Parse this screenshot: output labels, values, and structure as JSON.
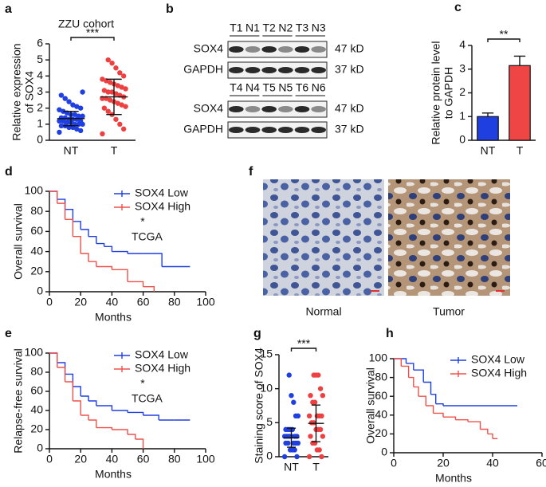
{
  "chart_data": [
    {
      "type": "strip",
      "panel": "a",
      "title": "ZZU cohort",
      "ylabel": [
        "Relative expression",
        "of SOX4"
      ],
      "categories": [
        "NT",
        "T"
      ],
      "colors": [
        "#1f3fe0",
        "#ee4040"
      ],
      "values": [
        [
          0.5,
          0.6,
          0.7,
          0.8,
          0.8,
          0.9,
          0.9,
          1.0,
          1.0,
          1.0,
          1.1,
          1.1,
          1.2,
          1.2,
          1.2,
          1.3,
          1.3,
          1.3,
          1.4,
          1.4,
          1.5,
          1.5,
          1.6,
          1.6,
          1.7,
          1.8,
          1.9,
          2.0,
          2.1,
          2.2,
          2.4,
          2.6,
          2.8,
          3.0
        ],
        [
          0.4,
          0.7,
          1.0,
          1.3,
          1.6,
          1.8,
          2.0,
          2.1,
          2.2,
          2.3,
          2.4,
          2.5,
          2.6,
          2.6,
          2.7,
          2.8,
          2.9,
          3.0,
          3.0,
          3.1,
          3.2,
          3.3,
          3.4,
          3.5,
          3.6,
          3.7,
          3.8,
          4.0,
          4.2,
          4.5,
          4.8,
          5.0
        ]
      ],
      "means": [
        1.35,
        2.7
      ],
      "sds": [
        0.45,
        1.1
      ],
      "annotation": "***",
      "ylim": [
        0,
        6
      ],
      "yticks": [
        0,
        1,
        2,
        3,
        4,
        5,
        6
      ]
    },
    {
      "type": "bar",
      "panel": "c",
      "ylabel": [
        "Relative protein level",
        "to GAPDH"
      ],
      "categories": [
        "NT",
        "T"
      ],
      "colors": [
        "#1f3fe0",
        "#f04545"
      ],
      "values": [
        1.0,
        3.15
      ],
      "errors": [
        0.15,
        0.4
      ],
      "annotation": "**",
      "ylim": [
        0,
        4
      ],
      "yticks": [
        0,
        1,
        2,
        3,
        4
      ]
    },
    {
      "type": "survival",
      "panel": "d",
      "ylabel": "Overall survival",
      "xlabel": "Months",
      "annotations": [
        "*",
        "TCGA"
      ],
      "series": [
        {
          "name": "SOX4 Low",
          "color": "#1f3fe0",
          "x": [
            0,
            5,
            10,
            15,
            20,
            25,
            30,
            35,
            40,
            50,
            60,
            72,
            90
          ],
          "values": [
            100,
            92,
            82,
            70,
            62,
            55,
            48,
            45,
            40,
            38,
            38,
            25,
            25
          ]
        },
        {
          "name": "SOX4 High",
          "color": "#f0504a",
          "x": [
            0,
            5,
            10,
            15,
            20,
            25,
            30,
            40,
            50,
            60,
            67
          ],
          "values": [
            100,
            88,
            72,
            55,
            38,
            30,
            25,
            22,
            10,
            5,
            0
          ]
        }
      ],
      "xlim": [
        0,
        100
      ],
      "xticks": [
        0,
        20,
        40,
        60,
        80,
        100
      ],
      "ylim": [
        0,
        100
      ],
      "yticks": [
        0,
        20,
        40,
        60,
        80,
        100
      ]
    },
    {
      "type": "survival",
      "panel": "e",
      "ylabel": "Relapse-free survival",
      "xlabel": "Months",
      "annotations": [
        "*",
        "TCGA"
      ],
      "series": [
        {
          "name": "SOX4 Low",
          "color": "#1f3fe0",
          "x": [
            0,
            5,
            10,
            15,
            20,
            25,
            30,
            40,
            50,
            60,
            70,
            80,
            90
          ],
          "values": [
            100,
            90,
            78,
            65,
            55,
            50,
            45,
            40,
            38,
            35,
            30,
            30,
            30
          ]
        },
        {
          "name": "SOX4 High",
          "color": "#f0504a",
          "x": [
            0,
            5,
            10,
            15,
            20,
            25,
            30,
            40,
            50,
            55,
            60
          ],
          "values": [
            100,
            85,
            70,
            50,
            35,
            30,
            22,
            20,
            15,
            10,
            0
          ]
        }
      ],
      "xlim": [
        0,
        100
      ],
      "xticks": [
        0,
        20,
        40,
        60,
        80,
        100
      ],
      "ylim": [
        0,
        100
      ],
      "yticks": [
        0,
        20,
        40,
        60,
        80,
        100
      ]
    },
    {
      "type": "strip",
      "panel": "g",
      "ylabel": [
        "Staining score of SOX4"
      ],
      "categories": [
        "NT",
        "T"
      ],
      "colors": [
        "#1f3fe0",
        "#ee4040"
      ],
      "values": [
        [
          0,
          0,
          1,
          1,
          1,
          2,
          2,
          2,
          2,
          2,
          3,
          3,
          3,
          3,
          3,
          3,
          4,
          4,
          4,
          4,
          6,
          6,
          8,
          9,
          12
        ],
        [
          0,
          0,
          1,
          1,
          2,
          2,
          3,
          3,
          4,
          4,
          4,
          5,
          5,
          6,
          6,
          6,
          6,
          8,
          8,
          9,
          9,
          10,
          12,
          12,
          12
        ]
      ],
      "means": [
        2.8,
        4.9
      ],
      "sds": [
        1.4,
        2.7
      ],
      "annotation": "***",
      "ylim": [
        0,
        15
      ],
      "yticks": [
        0,
        5,
        10,
        15
      ]
    },
    {
      "type": "survival",
      "panel": "h",
      "ylabel": "Overall survival",
      "xlabel": "Months",
      "annotations": [],
      "series": [
        {
          "name": "SOX4 Low",
          "color": "#1f3fe0",
          "x": [
            0,
            5,
            8,
            12,
            15,
            17,
            20,
            50
          ],
          "values": [
            100,
            95,
            88,
            75,
            62,
            52,
            50,
            50
          ]
        },
        {
          "name": "SOX4 High",
          "color": "#f0504a",
          "x": [
            0,
            3,
            6,
            8,
            10,
            13,
            16,
            20,
            25,
            30,
            35,
            38,
            40,
            42
          ],
          "values": [
            100,
            92,
            80,
            70,
            60,
            50,
            42,
            38,
            35,
            33,
            25,
            20,
            15,
            15
          ]
        }
      ],
      "xlim": [
        0,
        60
      ],
      "xticks": [
        0,
        20,
        40,
        60
      ],
      "ylim": [
        0,
        100
      ],
      "yticks": [
        0,
        20,
        40,
        60,
        80,
        100
      ]
    }
  ],
  "blot": {
    "panel": "b",
    "groups": [
      {
        "lanes": [
          "T1",
          "N1",
          "T2",
          "N2",
          "T3",
          "N3"
        ],
        "rows": [
          {
            "protein": "SOX4",
            "size": "47 kD"
          },
          {
            "protein": "GAPDH",
            "size": "37 kD"
          }
        ]
      },
      {
        "lanes": [
          "T4",
          "N4",
          "T5",
          "N5",
          "T6",
          "N6"
        ],
        "rows": [
          {
            "protein": "SOX4",
            "size": "47 kD"
          },
          {
            "protein": "GAPDH",
            "size": "37 kD"
          }
        ]
      }
    ]
  },
  "ihc": {
    "panel": "f",
    "labels": [
      "Normal",
      "Tumor"
    ]
  }
}
